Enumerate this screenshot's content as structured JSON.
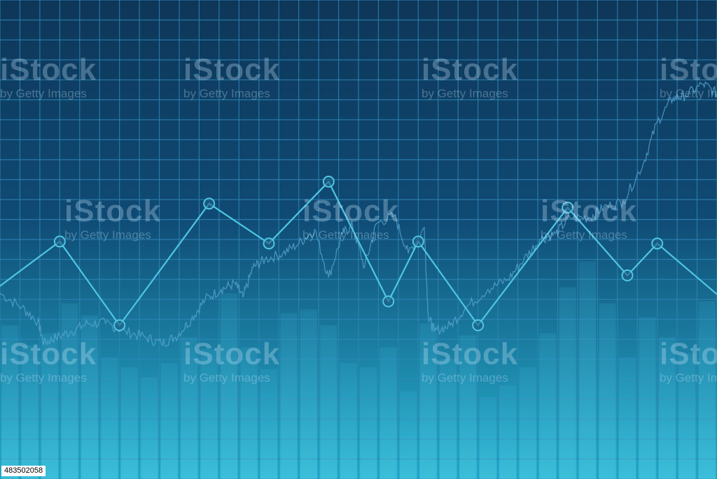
{
  "colors": {
    "background_top": "#0e3658",
    "background_bottom": "#26b3d0",
    "grid": "#2e86b7",
    "line": "#4fc6e3",
    "marker_fill": "#1f5f86",
    "bars": "#3bb4d8",
    "stock_line": "#5aa7d1"
  },
  "watermark": {
    "brand": "iStock",
    "tagline": "by Getty Images"
  },
  "stock_id": "483502058",
  "chart_data": {
    "type": "line",
    "title": "",
    "xlabel": "",
    "ylabel": "",
    "grid": true,
    "legend": "none",
    "xlim": [
      0,
      36
    ],
    "ylim": [
      0,
      24
    ],
    "series": [
      {
        "type": "line",
        "markers": "circle",
        "x": [
          -0.5,
          3,
          6,
          10.5,
          13.5,
          16.5,
          19.5,
          21,
          24,
          28.5,
          31.5,
          33,
          36.3
        ],
        "values": [
          9.3,
          11.9,
          7.7,
          13.8,
          11.8,
          14.9,
          8.9,
          11.9,
          7.7,
          13.6,
          10.2,
          11.8,
          9.0
        ]
      },
      {
        "type": "bar",
        "x": [
          0.5,
          1.5,
          2.5,
          3.5,
          4.5,
          5.5,
          6.5,
          7.5,
          8.5,
          9.5,
          10.5,
          11.5,
          12.5,
          13.5,
          14.5,
          15.5,
          16.5,
          17.5,
          18.5,
          19.5,
          20.5,
          21.5,
          22.5,
          23.5,
          24.5,
          25.5,
          26.5,
          27.5,
          28.5,
          29.5,
          30.5,
          31.5,
          32.5,
          33.5,
          34.5,
          35.5
        ],
        "values": [
          7.7,
          6.7,
          7.3,
          8.8,
          8.2,
          6.1,
          5.6,
          5.1,
          5.8,
          7.1,
          6.5,
          9.3,
          6.6,
          5.5,
          8.3,
          8.5,
          7.7,
          5.8,
          5.6,
          6.6,
          4.4,
          7.8,
          6.0,
          7.2,
          4.1,
          4.7,
          5.6,
          7.3,
          9.6,
          10.9,
          8.8,
          6.1,
          8.1,
          7.1,
          6.3,
          8.9
        ]
      },
      {
        "type": "line",
        "style": "noisy",
        "x": [
          0,
          1.1,
          1.9,
          2.2,
          2.8,
          3.6,
          4.4,
          5.3,
          6.3,
          7.3,
          8.1,
          8.8,
          9.6,
          10.3,
          11.1,
          11.8,
          12.2,
          12.7,
          13.3,
          14.2,
          15,
          15.8,
          16.5,
          17.2,
          17.7,
          18.3,
          18.9,
          19.8,
          20.5,
          21.3,
          21.5,
          21.8,
          22.6,
          23.4,
          24.5,
          25.5,
          26.3,
          27.1,
          27.9,
          28.6,
          29.6,
          30.3,
          31.3,
          32.3,
          33,
          33.8,
          34.4,
          35.3,
          36
        ],
        "values": [
          9.3,
          8.6,
          7.9,
          6.8,
          7.1,
          7.4,
          7.8,
          7.8,
          7.4,
          7.1,
          6.8,
          7.1,
          8.0,
          9.0,
          9.5,
          9.8,
          9.1,
          10.6,
          11.0,
          11.3,
          11.8,
          12.5,
          10.1,
          12.3,
          12.7,
          10.6,
          12.8,
          13.2,
          11.3,
          12.6,
          8.2,
          7.4,
          7.7,
          8.6,
          9.5,
          10.0,
          11.0,
          12.0,
          12.3,
          13.1,
          13.1,
          13.6,
          13.9,
          15.8,
          17.9,
          19.1,
          19.2,
          19.8,
          19.3
        ]
      }
    ]
  }
}
